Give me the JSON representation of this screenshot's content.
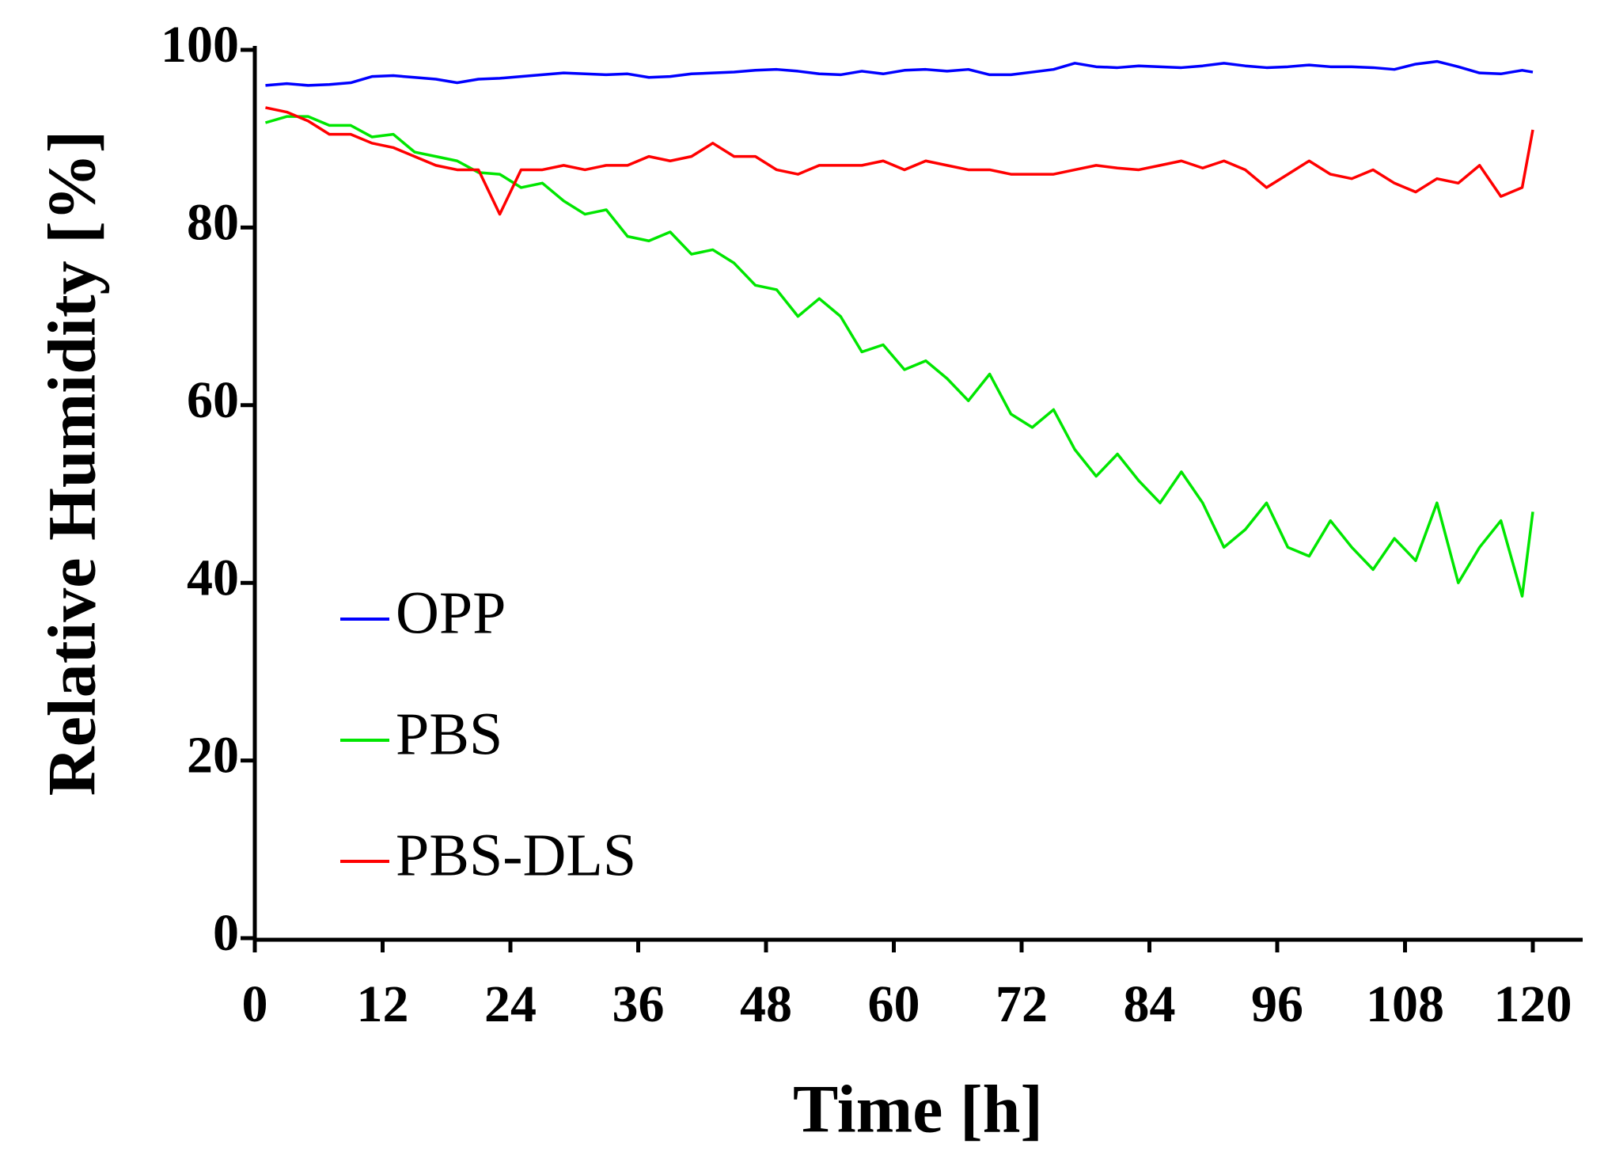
{
  "chart_data": {
    "type": "line",
    "xlabel": "Time [h]",
    "ylabel": "Relative Humidity [%]",
    "x": [
      1,
      3,
      5,
      7,
      9,
      11,
      13,
      15,
      17,
      19,
      21,
      23,
      25,
      27,
      29,
      31,
      33,
      35,
      37,
      39,
      41,
      43,
      45,
      47,
      49,
      51,
      53,
      55,
      57,
      59,
      61,
      63,
      65,
      67,
      69,
      71,
      73,
      75,
      77,
      79,
      81,
      83,
      85,
      87,
      89,
      91,
      93,
      95,
      97,
      99,
      101,
      103,
      105,
      107,
      109,
      111,
      113,
      115,
      117,
      119,
      120
    ],
    "series": [
      {
        "name": "OPP",
        "color": "#0000ff",
        "values": [
          96,
          96.2,
          96,
          96.1,
          96.3,
          97,
          97.1,
          96.9,
          96.7,
          96.3,
          96.7,
          96.8,
          97,
          97.2,
          97.4,
          97.3,
          97.2,
          97.3,
          96.9,
          97,
          97.3,
          97.4,
          97.5,
          97.7,
          97.8,
          97.6,
          97.3,
          97.2,
          97.6,
          97.3,
          97.7,
          97.8,
          97.6,
          97.8,
          97.2,
          97.2,
          97.5,
          97.8,
          98.5,
          98.1,
          98,
          98.2,
          98.1,
          98,
          98.2,
          98.5,
          98.2,
          98,
          98.1,
          98.3,
          98.1,
          98.1,
          98,
          97.8,
          98.4,
          98.7,
          98.1,
          97.4,
          97.3,
          97.7,
          97.5
        ]
      },
      {
        "name": "PBS",
        "color": "#00e600",
        "values": [
          91.8,
          92.5,
          92.5,
          91.5,
          91.5,
          90.2,
          90.5,
          88.5,
          88,
          87.5,
          86.2,
          86,
          84.5,
          85,
          83,
          81.5,
          82,
          79,
          78.5,
          79.5,
          77,
          77.5,
          76,
          73.5,
          73,
          70,
          72,
          70,
          66,
          66.8,
          64,
          65,
          63,
          60.5,
          63.5,
          59,
          57.5,
          59.5,
          55,
          52,
          54.5,
          51.5,
          49,
          52.5,
          49,
          44,
          46,
          49,
          44,
          43,
          47,
          44,
          41.5,
          45,
          42.5,
          49,
          40,
          44,
          47,
          38.5,
          48
        ]
      },
      {
        "name": "PBS-DLS",
        "color": "#ff0000",
        "values": [
          93.5,
          93,
          92,
          90.5,
          90.5,
          89.5,
          89,
          88,
          87,
          86.5,
          86.5,
          81.5,
          86.5,
          86.5,
          87,
          86.5,
          87,
          87,
          88,
          87.5,
          88,
          89.5,
          88,
          88,
          86.5,
          86,
          87,
          87,
          87,
          87.5,
          86.5,
          87.5,
          87,
          86.5,
          86.5,
          86,
          86,
          86,
          86.5,
          87,
          86.7,
          86.5,
          87,
          87.5,
          86.7,
          87.5,
          86.5,
          84.5,
          86,
          87.5,
          86,
          85.5,
          86.5,
          85,
          84,
          85.5,
          85,
          87,
          83.5,
          84.5,
          91
        ]
      }
    ],
    "xlim": [
      0,
      120
    ],
    "xticks": [
      0,
      12,
      24,
      36,
      48,
      60,
      72,
      84,
      96,
      108,
      120
    ],
    "ylim": [
      0,
      100
    ],
    "yticks": [
      0,
      20,
      40,
      60,
      80,
      100
    ],
    "legend": "lower left"
  }
}
